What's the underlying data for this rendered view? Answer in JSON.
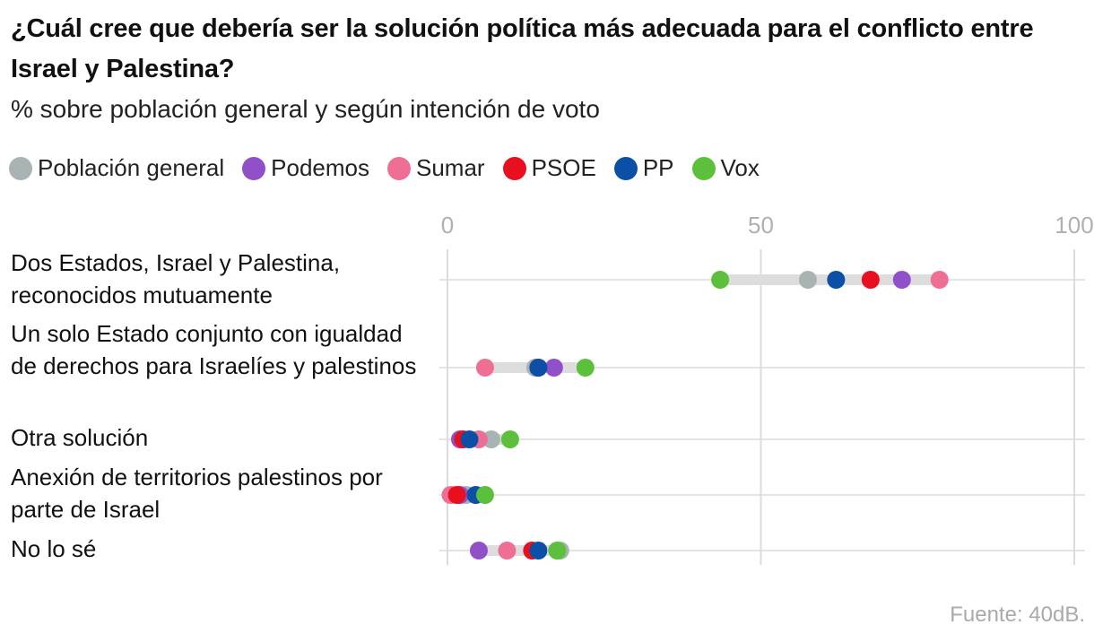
{
  "header": {
    "title": "¿Cuál cree que debería ser la solución política más adecuada para el conflicto entre Israel y Palestina?",
    "subtitle": "% sobre población general y según intención de voto"
  },
  "legend": [
    {
      "label": "Población general",
      "color": "#aab3b3"
    },
    {
      "label": "Podemos",
      "color": "#9050c8"
    },
    {
      "label": "Sumar",
      "color": "#ef6f94"
    },
    {
      "label": "PSOE",
      "color": "#e8101e"
    },
    {
      "label": "PP",
      "color": "#0b4fa6"
    },
    {
      "label": "Vox",
      "color": "#5cc03c"
    }
  ],
  "chart_data": {
    "type": "scatter",
    "title": "¿Cuál cree que debería ser la solución política más adecuada para el conflicto entre Israel y Palestina?",
    "subtitle": "% sobre población general y según intención de voto",
    "xlim": [
      0,
      100
    ],
    "xticks": [
      0,
      50,
      100
    ],
    "categories": [
      "Dos Estados, Israel y Palestina, reconocidos mutuamente",
      "Un solo Estado conjunto con igualdad de derechos para Israelíes y palestinos",
      "Otra solución",
      "Anexión de territorios palestinos por parte de Israel",
      "No lo sé"
    ],
    "series": [
      {
        "name": "Población general",
        "color": "#aab3b3",
        "values": [
          57.5,
          14,
          7,
          3,
          18
        ]
      },
      {
        "name": "Podemos",
        "color": "#9050c8",
        "values": [
          72.5,
          17,
          2,
          2,
          5
        ]
      },
      {
        "name": "Sumar",
        "color": "#ef6f94",
        "values": [
          78.5,
          6,
          5,
          0.5,
          9.5
        ]
      },
      {
        "name": "PSOE",
        "color": "#e8101e",
        "values": [
          67.5,
          14.5,
          2.5,
          1.5,
          13.5
        ]
      },
      {
        "name": "PP",
        "color": "#0b4fa6",
        "values": [
          62,
          14.5,
          3.5,
          4.5,
          14.5
        ]
      },
      {
        "name": "Vox",
        "color": "#5cc03c",
        "values": [
          43.5,
          22,
          10,
          6,
          17.5
        ]
      }
    ]
  },
  "source": "Fuente: 40dB."
}
